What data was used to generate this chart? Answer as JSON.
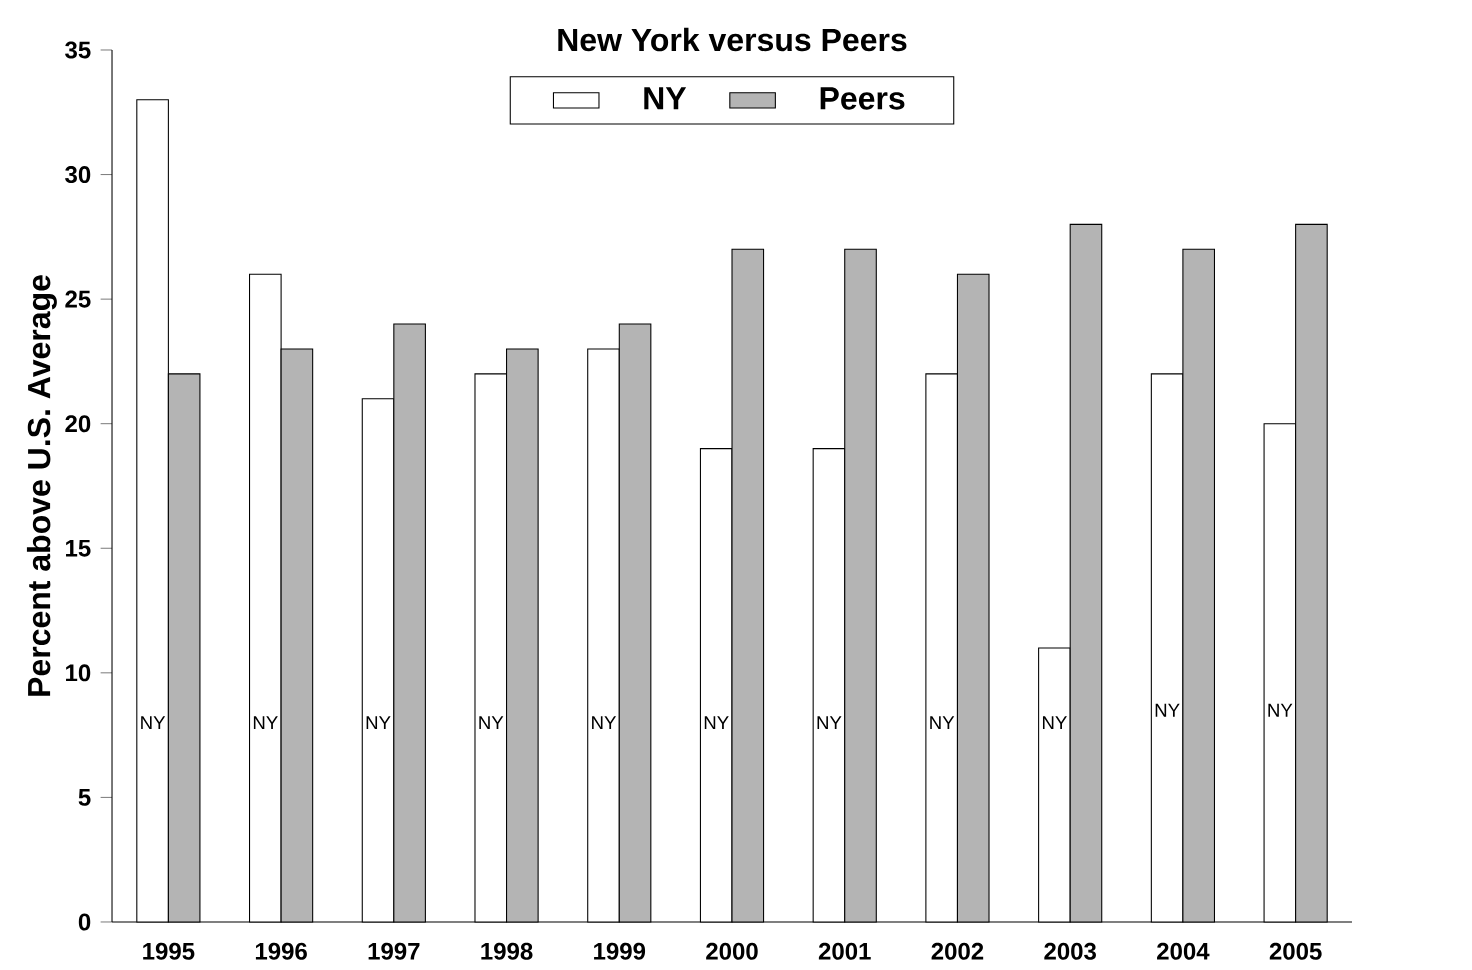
{
  "chart_data": {
    "type": "bar",
    "title": "New York versus Peers",
    "ylabel": "Percent above U.S. Average",
    "categories": [
      "1995",
      "1996",
      "1997",
      "1998",
      "1999",
      "2000",
      "2001",
      "2002",
      "2003",
      "2004",
      "2005"
    ],
    "series": [
      {
        "name": "NY",
        "color": "#ffffff",
        "values": [
          33,
          26,
          21,
          22,
          23,
          19,
          19,
          22,
          11,
          22,
          20
        ]
      },
      {
        "name": "Peers",
        "color": "#b4b4b4",
        "values": [
          22,
          23,
          24,
          23,
          24,
          27,
          27,
          26,
          28,
          27,
          28
        ]
      }
    ],
    "ylim": [
      0,
      35
    ],
    "yticks": [
      0,
      5,
      10,
      15,
      20,
      25,
      30,
      35
    ],
    "grid": false,
    "legend": "top",
    "annotations": [
      {
        "text": "NY",
        "x": "1995",
        "y": 8
      },
      {
        "text": "NY",
        "x": "1996",
        "y": 8
      },
      {
        "text": "NY",
        "x": "1997",
        "y": 8
      },
      {
        "text": "NY",
        "x": "1998",
        "y": 8
      },
      {
        "text": "NY",
        "x": "1999",
        "y": 8
      },
      {
        "text": "NY",
        "x": "2000",
        "y": 8
      },
      {
        "text": "NY",
        "x": "2001",
        "y": 8
      },
      {
        "text": "NY",
        "x": "2002",
        "y": 8
      },
      {
        "text": "NY",
        "x": "2003",
        "y": 8
      },
      {
        "text": "NY",
        "x": "2004",
        "y": 8.5
      },
      {
        "text": "NY",
        "x": "2005",
        "y": 8.5
      }
    ]
  }
}
